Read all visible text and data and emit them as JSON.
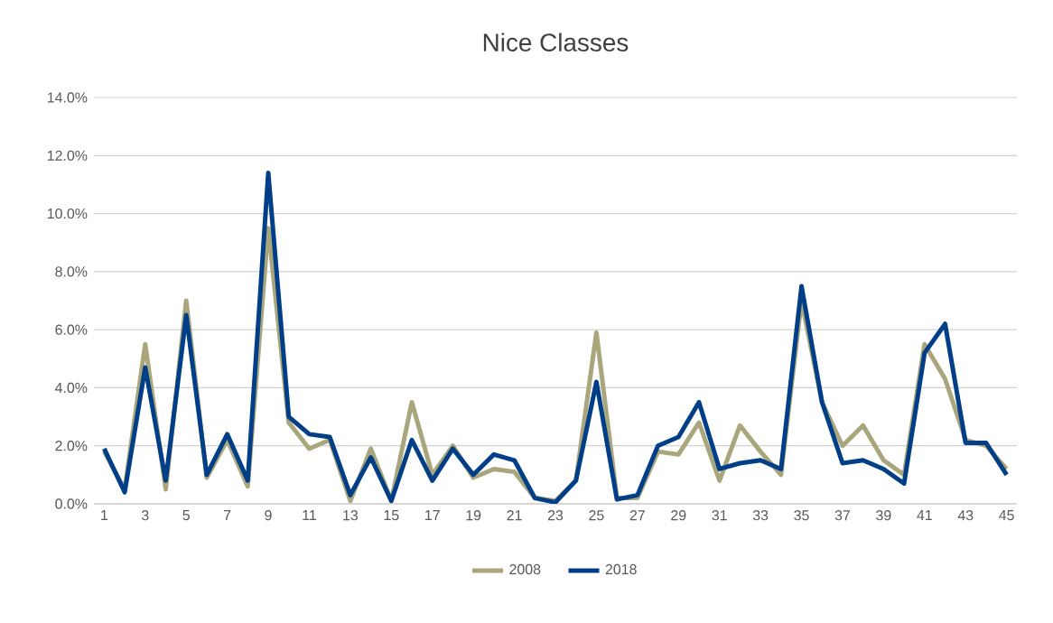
{
  "chart_data": {
    "type": "line",
    "title": "Nice Classes",
    "categories": [
      "1",
      null,
      "3",
      null,
      "5",
      null,
      "7",
      null,
      "9",
      null,
      "11",
      null,
      "13",
      null,
      "15",
      null,
      "17",
      null,
      "19",
      null,
      "21",
      null,
      "23",
      null,
      "25",
      null,
      "27",
      null,
      "29",
      null,
      "31",
      null,
      "33",
      null,
      "35",
      null,
      "37",
      null,
      "39",
      null,
      "41",
      null,
      "43",
      null,
      "45"
    ],
    "series": [
      {
        "name": "2008",
        "color": "#a9a57c",
        "values": [
          1.8,
          0.5,
          5.5,
          0.5,
          7.0,
          0.9,
          2.2,
          0.6,
          9.5,
          2.8,
          1.9,
          2.2,
          0.1,
          1.9,
          0.1,
          3.5,
          1.0,
          2.0,
          0.9,
          1.2,
          1.1,
          0.2,
          0.1,
          0.8,
          5.9,
          0.2,
          0.2,
          1.8,
          1.7,
          2.8,
          0.8,
          2.7,
          1.8,
          1.0,
          7.0,
          3.5,
          2.0,
          2.7,
          1.5,
          1.0,
          5.5,
          4.3,
          2.2,
          2.0,
          1.2
        ]
      },
      {
        "name": "2018",
        "color": "#003f87",
        "values": [
          1.9,
          0.4,
          4.7,
          0.8,
          6.5,
          1.0,
          2.4,
          0.8,
          11.4,
          3.0,
          2.4,
          2.3,
          0.3,
          1.6,
          0.1,
          2.2,
          0.8,
          1.9,
          1.0,
          1.7,
          1.5,
          0.2,
          0.05,
          0.8,
          4.2,
          0.15,
          0.3,
          2.0,
          2.3,
          3.5,
          1.2,
          1.4,
          1.5,
          1.2,
          7.5,
          3.5,
          1.4,
          1.5,
          1.2,
          0.7,
          5.2,
          6.2,
          2.1,
          2.1,
          1.0
        ]
      }
    ],
    "ylim": [
      0,
      14
    ],
    "yticks": [
      {
        "value": 0,
        "label": "0.0%"
      },
      {
        "value": 2,
        "label": "2.0%"
      },
      {
        "value": 4,
        "label": "4.0%"
      },
      {
        "value": 6,
        "label": "6.0%"
      },
      {
        "value": 8,
        "label": "8.0%"
      },
      {
        "value": 10,
        "label": "10.0%"
      },
      {
        "value": 12,
        "label": "12.0%"
      },
      {
        "value": 14,
        "label": "14.0%"
      }
    ],
    "grid": "y",
    "legend": "bottom",
    "marker": "none",
    "line_style": "solid"
  }
}
